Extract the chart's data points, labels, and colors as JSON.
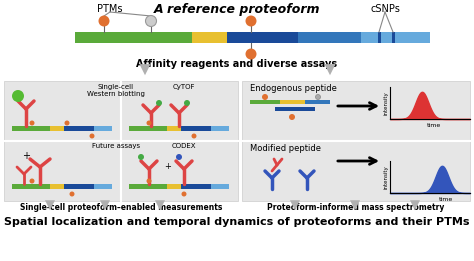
{
  "title_top": "A reference proteoform",
  "label_ptms": "PTMs",
  "label_csnps": "cSNPs",
  "label_affinity": "Affinity reagents and diverse assays",
  "label_left_box": "Single-cell proteoform–enabled measurements",
  "label_right_box": "Proteoform-informed mass spectrometry",
  "label_single_cell": "Single-cell\nWestern blotting",
  "label_cytof": "CyTOF",
  "label_future": "Future assays",
  "label_codex": "CODEX",
  "label_endogenous": "Endogenous peptide",
  "label_modified": "Modified peptide",
  "label_intensity": "intensity",
  "label_time": "time",
  "label_bottom": "Spatial localization and temporal dynamics of proteoforms and their PTMs",
  "bg_color": "#ffffff",
  "box_color": "#e6e6e6",
  "bar_green": "#5aaa3a",
  "bar_yellow": "#e8c030",
  "bar_blue_dark": "#1a4a99",
  "bar_blue_mid": "#3377bb",
  "bar_blue_light": "#66aadd",
  "marker_orange": "#e07030",
  "marker_gray": "#aaaaaa",
  "arrow_gray": "#b0b0b0",
  "peak_red": "#dd3333",
  "peak_blue": "#3355bb",
  "antibody_red": "#dd4444",
  "antibody_blue": "#3355bb",
  "antibody_green_dot": "#44aa44"
}
